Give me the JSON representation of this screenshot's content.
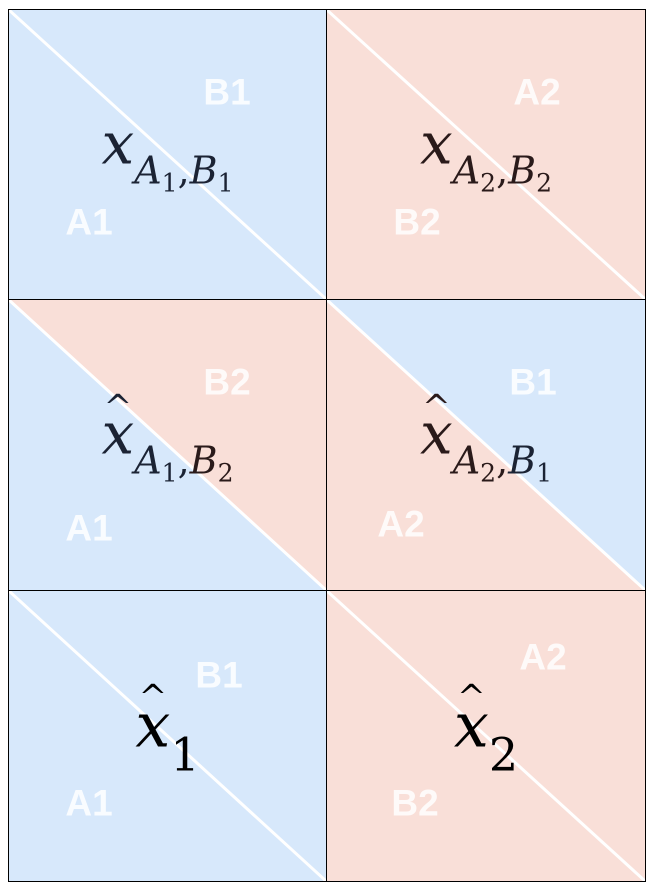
{
  "colors": {
    "blue": "#d7e8fb",
    "pink": "#f9dfd8",
    "diagonal": "#ffffff",
    "border": "#000000"
  },
  "cells": [
    {
      "fill_upper": "blue",
      "fill_lower": "blue",
      "upper_label": "B1",
      "lower_label": "A1",
      "formula": {
        "symbol": "x",
        "hat": false,
        "sub_a": "A",
        "sub_a_idx": "1",
        "sep": ",",
        "sub_b": "B",
        "sub_b_idx": "1"
      }
    },
    {
      "fill_upper": "pink",
      "fill_lower": "pink",
      "upper_label": "A2",
      "lower_label": "B2",
      "formula": {
        "symbol": "x",
        "hat": false,
        "sub_a": "A",
        "sub_a_idx": "2",
        "sep": ",",
        "sub_b": "B",
        "sub_b_idx": "2"
      }
    },
    {
      "fill_upper": "pink",
      "fill_lower": "blue",
      "upper_label": "B2",
      "lower_label": "A1",
      "formula": {
        "symbol": "x",
        "hat": true,
        "hat_glyph": "^",
        "sub_a": "A",
        "sub_a_idx": "1",
        "sep": ",",
        "sub_b": "B",
        "sub_b_idx": "2"
      }
    },
    {
      "fill_upper": "blue",
      "fill_lower": "pink",
      "upper_label": "B1",
      "lower_label": "A2",
      "formula": {
        "symbol": "x",
        "hat": true,
        "hat_glyph": "^",
        "sub_a": "A",
        "sub_a_idx": "2",
        "sep": ",",
        "sub_b": "B",
        "sub_b_idx": "1"
      }
    },
    {
      "fill_upper": "blue",
      "fill_lower": "blue",
      "upper_label": "B1",
      "lower_label": "A1",
      "formula": {
        "symbol": "x",
        "hat": true,
        "hat_glyph": "^",
        "sub": "1"
      }
    },
    {
      "fill_upper": "pink",
      "fill_lower": "pink",
      "upper_label": "A2",
      "lower_label": "B2",
      "formula": {
        "symbol": "x",
        "hat": true,
        "hat_glyph": "^",
        "sub": "2"
      }
    }
  ]
}
